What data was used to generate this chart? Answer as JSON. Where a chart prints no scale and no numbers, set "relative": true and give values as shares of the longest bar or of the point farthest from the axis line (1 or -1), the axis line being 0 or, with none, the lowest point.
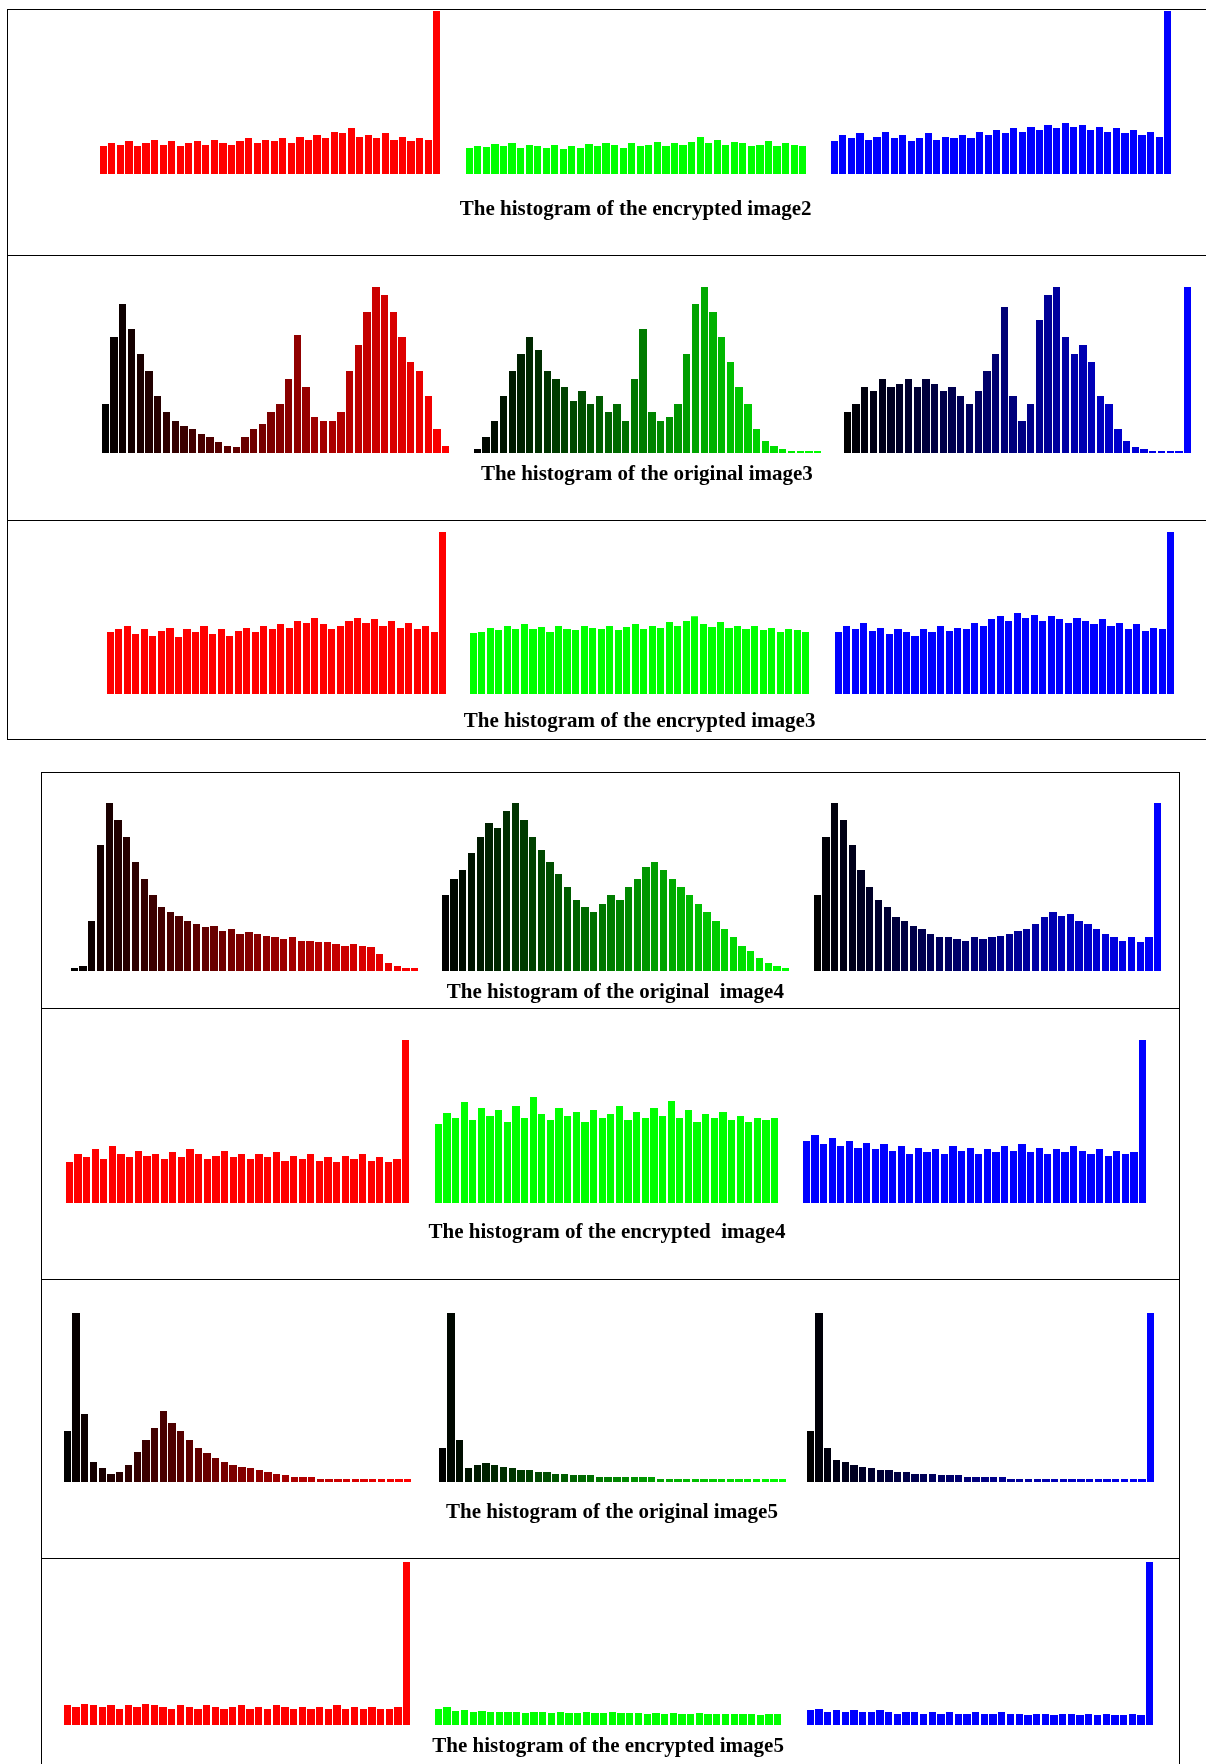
{
  "chart_data": [
    {
      "type": "bar",
      "relative": true,
      "categories": [
        null,
        null,
        null,
        null,
        null,
        null,
        null,
        null,
        null,
        null,
        null,
        null,
        null,
        null,
        null,
        null,
        null,
        null,
        null,
        null,
        null,
        null,
        null,
        null,
        null,
        null,
        null,
        null,
        null,
        null,
        null,
        null,
        null,
        null,
        null,
        null,
        null,
        null,
        null,
        null
      ],
      "color": "#ff0000",
      "values": [
        0.17,
        0.19,
        0.18,
        0.2,
        0.17,
        0.19,
        0.21,
        0.18,
        0.2,
        0.17,
        0.19,
        0.2,
        0.18,
        0.21,
        0.19,
        0.18,
        0.2,
        0.22,
        0.19,
        0.21,
        0.2,
        0.22,
        0.19,
        0.23,
        0.21,
        0.24,
        0.22,
        0.26,
        0.25,
        0.28,
        0.23,
        0.24,
        0.22,
        0.25,
        0.21,
        0.23,
        0.2,
        0.22,
        0.21,
        1
      ]
    },
    {
      "type": "bar",
      "relative": true,
      "title": "The histogram of the encrypted image2",
      "categories": [
        null,
        null,
        null,
        null,
        null,
        null,
        null,
        null,
        null,
        null,
        null,
        null,
        null,
        null,
        null,
        null,
        null,
        null,
        null,
        null,
        null,
        null,
        null,
        null,
        null,
        null,
        null,
        null,
        null,
        null,
        null,
        null,
        null,
        null,
        null,
        null,
        null,
        null,
        null,
        null
      ],
      "color": "#00ff00",
      "values": [
        0.7,
        0.75,
        0.72,
        0.8,
        0.74,
        0.82,
        0.7,
        0.78,
        0.75,
        0.7,
        0.78,
        0.68,
        0.74,
        0.7,
        0.8,
        0.74,
        0.82,
        0.78,
        0.7,
        0.84,
        0.74,
        0.78,
        0.86,
        0.74,
        0.82,
        0.78,
        0.86,
        1,
        0.84,
        0.9,
        0.78,
        0.86,
        0.82,
        0.74,
        0.78,
        0.88,
        0.74,
        0.82,
        0.78,
        0.74
      ]
    },
    {
      "type": "bar",
      "relative": true,
      "categories": [
        null,
        null,
        null,
        null,
        null,
        null,
        null,
        null,
        null,
        null,
        null,
        null,
        null,
        null,
        null,
        null,
        null,
        null,
        null,
        null,
        null,
        null,
        null,
        null,
        null,
        null,
        null,
        null,
        null,
        null,
        null,
        null,
        null,
        null,
        null,
        null,
        null,
        null,
        null,
        null
      ],
      "color": "#0000ff",
      "values": [
        0.2,
        0.24,
        0.22,
        0.25,
        0.21,
        0.23,
        0.26,
        0.22,
        0.24,
        0.2,
        0.22,
        0.25,
        0.21,
        0.23,
        0.22,
        0.24,
        0.22,
        0.26,
        0.24,
        0.27,
        0.25,
        0.28,
        0.26,
        0.29,
        0.27,
        0.3,
        0.28,
        0.31,
        0.29,
        0.3,
        0.27,
        0.29,
        0.26,
        0.28,
        0.25,
        0.27,
        0.24,
        0.26,
        0.23,
        1
      ]
    },
    {
      "type": "bar",
      "relative": true,
      "categories": [
        null,
        null,
        null,
        null,
        null,
        null,
        null,
        null,
        null,
        null,
        null,
        null,
        null,
        null,
        null,
        null,
        null,
        null,
        null,
        null,
        null,
        null,
        null,
        null,
        null,
        null,
        null,
        null,
        null,
        null,
        null,
        null,
        null,
        null,
        null,
        null,
        null,
        null,
        null,
        null
      ],
      "colors": [
        "#000000",
        "#070000",
        "#0d0000",
        "#140000",
        "#1a0000",
        "#210000",
        "#270000",
        "#2e0000",
        "#340000",
        "#3b0000",
        "#410000",
        "#480000",
        "#4e0000",
        "#550000",
        "#5c0000",
        "#620000",
        "#690000",
        "#6f0000",
        "#760000",
        "#7c0000",
        "#830000",
        "#890000",
        "#900000",
        "#960000",
        "#9d0000",
        "#a30000",
        "#aa0000",
        "#b10000",
        "#b70000",
        "#be0000",
        "#c40000",
        "#cb0000",
        "#d10000",
        "#d80000",
        "#de0000",
        "#e50000",
        "#eb0000",
        "#f20000",
        "#f80000",
        "#ff0000"
      ],
      "values": [
        0.3,
        0.7,
        0.9,
        0.75,
        0.6,
        0.5,
        0.35,
        0.25,
        0.2,
        0.17,
        0.15,
        0.12,
        0.1,
        0.07,
        0.05,
        0.04,
        0.1,
        0.15,
        0.18,
        0.25,
        0.3,
        0.45,
        0.71,
        0.4,
        0.22,
        0.2,
        0.2,
        0.25,
        0.5,
        0.65,
        0.85,
        1,
        0.95,
        0.85,
        0.7,
        0.55,
        0.5,
        0.35,
        0.15,
        0.05
      ]
    },
    {
      "type": "bar",
      "relative": true,
      "title": "The histogram of the original image3",
      "categories": [
        null,
        null,
        null,
        null,
        null,
        null,
        null,
        null,
        null,
        null,
        null,
        null,
        null,
        null,
        null,
        null,
        null,
        null,
        null,
        null,
        null,
        null,
        null,
        null,
        null,
        null,
        null,
        null,
        null,
        null,
        null,
        null,
        null,
        null,
        null,
        null,
        null,
        null,
        null,
        null
      ],
      "colors": [
        "#000000",
        "#000700",
        "#000d00",
        "#001400",
        "#001a00",
        "#002100",
        "#002700",
        "#002e00",
        "#003400",
        "#003b00",
        "#004100",
        "#004800",
        "#004e00",
        "#005500",
        "#005c00",
        "#006200",
        "#006900",
        "#006f00",
        "#007600",
        "#007c00",
        "#008300",
        "#008900",
        "#009000",
        "#009600",
        "#009d00",
        "#00a300",
        "#00aa00",
        "#00b100",
        "#00b700",
        "#00be00",
        "#00c400",
        "#00cb00",
        "#00d100",
        "#00d800",
        "#00de00",
        "#00e500",
        "#00eb00",
        "#00f200",
        "#00f800",
        "#00ff00"
      ],
      "values": [
        0.03,
        0.1,
        0.2,
        0.35,
        0.5,
        0.6,
        0.7,
        0.62,
        0.5,
        0.45,
        0.4,
        0.32,
        0.38,
        0.3,
        0.35,
        0.25,
        0.3,
        0.2,
        0.45,
        0.75,
        0.25,
        0.2,
        0.22,
        0.3,
        0.6,
        0.9,
        1,
        0.85,
        0.7,
        0.55,
        0.4,
        0.3,
        0.15,
        0.08,
        0.05,
        0.03,
        0.02,
        0.02,
        0.02,
        0.02
      ]
    },
    {
      "type": "bar",
      "relative": true,
      "categories": [
        null,
        null,
        null,
        null,
        null,
        null,
        null,
        null,
        null,
        null,
        null,
        null,
        null,
        null,
        null,
        null,
        null,
        null,
        null,
        null,
        null,
        null,
        null,
        null,
        null,
        null,
        null,
        null,
        null,
        null,
        null,
        null,
        null,
        null,
        null,
        null,
        null,
        null,
        null,
        null
      ],
      "colors": [
        "#000000",
        "#000007",
        "#00000d",
        "#000014",
        "#00001a",
        "#000021",
        "#000027",
        "#00002e",
        "#000034",
        "#00003b",
        "#000041",
        "#000048",
        "#00004e",
        "#000055",
        "#00005c",
        "#000062",
        "#000069",
        "#00006f",
        "#000076",
        "#00007c",
        "#000083",
        "#000089",
        "#000090",
        "#000096",
        "#00009d",
        "#0000a3",
        "#0000aa",
        "#0000b1",
        "#0000b7",
        "#0000be",
        "#0000c4",
        "#0000cb",
        "#0000d1",
        "#0000d8",
        "#0000de",
        "#0000e5",
        "#0000eb",
        "#0000f2",
        "#0000f8",
        "#0000ff"
      ],
      "values": [
        0.25,
        0.3,
        0.4,
        0.38,
        0.45,
        0.4,
        0.42,
        0.45,
        0.4,
        0.45,
        0.42,
        0.38,
        0.4,
        0.35,
        0.3,
        0.38,
        0.5,
        0.6,
        0.88,
        0.35,
        0.2,
        0.3,
        0.8,
        0.95,
        1,
        0.7,
        0.6,
        0.65,
        0.55,
        0.35,
        0.3,
        0.15,
        0.08,
        0.04,
        0.03,
        0.02,
        0.02,
        0.02,
        0.02,
        1
      ]
    },
    {
      "type": "bar",
      "relative": true,
      "categories": [
        null,
        null,
        null,
        null,
        null,
        null,
        null,
        null,
        null,
        null,
        null,
        null,
        null,
        null,
        null,
        null,
        null,
        null,
        null,
        null,
        null,
        null,
        null,
        null,
        null,
        null,
        null,
        null,
        null,
        null,
        null,
        null,
        null,
        null,
        null,
        null,
        null,
        null,
        null,
        null
      ],
      "color": "#ff0000",
      "values": [
        0.38,
        0.4,
        0.42,
        0.37,
        0.4,
        0.36,
        0.39,
        0.41,
        0.35,
        0.4,
        0.38,
        0.42,
        0.37,
        0.4,
        0.36,
        0.39,
        0.41,
        0.38,
        0.42,
        0.4,
        0.43,
        0.41,
        0.45,
        0.44,
        0.47,
        0.43,
        0.4,
        0.42,
        0.45,
        0.47,
        0.44,
        0.46,
        0.42,
        0.45,
        0.41,
        0.44,
        0.4,
        0.42,
        0.38,
        1
      ]
    },
    {
      "type": "bar",
      "relative": true,
      "title": "The histogram of the encrypted image3",
      "categories": [
        null,
        null,
        null,
        null,
        null,
        null,
        null,
        null,
        null,
        null,
        null,
        null,
        null,
        null,
        null,
        null,
        null,
        null,
        null,
        null,
        null,
        null,
        null,
        null,
        null,
        null,
        null,
        null,
        null,
        null,
        null,
        null,
        null,
        null,
        null,
        null,
        null,
        null,
        null,
        null
      ],
      "color": "#00ff00",
      "values": [
        0.78,
        0.8,
        0.85,
        0.82,
        0.88,
        0.84,
        0.9,
        0.83,
        0.86,
        0.8,
        0.87,
        0.84,
        0.82,
        0.88,
        0.85,
        0.83,
        0.87,
        0.82,
        0.86,
        0.9,
        0.84,
        0.88,
        0.85,
        0.92,
        0.87,
        0.94,
        1,
        0.9,
        0.86,
        0.92,
        0.85,
        0.88,
        0.83,
        0.87,
        0.82,
        0.85,
        0.8,
        0.84,
        0.82,
        0.8
      ]
    },
    {
      "type": "bar",
      "relative": true,
      "categories": [
        null,
        null,
        null,
        null,
        null,
        null,
        null,
        null,
        null,
        null,
        null,
        null,
        null,
        null,
        null,
        null,
        null,
        null,
        null,
        null,
        null,
        null,
        null,
        null,
        null,
        null,
        null,
        null,
        null,
        null,
        null,
        null,
        null,
        null,
        null,
        null,
        null,
        null,
        null,
        null
      ],
      "color": "#0000ff",
      "values": [
        0.38,
        0.42,
        0.4,
        0.44,
        0.39,
        0.41,
        0.37,
        0.4,
        0.38,
        0.36,
        0.4,
        0.38,
        0.42,
        0.39,
        0.41,
        0.4,
        0.44,
        0.42,
        0.46,
        0.48,
        0.45,
        0.5,
        0.47,
        0.49,
        0.45,
        0.48,
        0.46,
        0.44,
        0.47,
        0.45,
        0.43,
        0.46,
        0.42,
        0.44,
        0.4,
        0.43,
        0.39,
        0.41,
        0.4,
        1
      ]
    },
    {
      "type": "bar",
      "relative": true,
      "categories": [
        null,
        null,
        null,
        null,
        null,
        null,
        null,
        null,
        null,
        null,
        null,
        null,
        null,
        null,
        null,
        null,
        null,
        null,
        null,
        null,
        null,
        null,
        null,
        null,
        null,
        null,
        null,
        null,
        null,
        null,
        null,
        null,
        null,
        null,
        null,
        null,
        null,
        null,
        null,
        null
      ],
      "colors": [
        "#000000",
        "#070000",
        "#0d0000",
        "#140000",
        "#1a0000",
        "#210000",
        "#270000",
        "#2e0000",
        "#340000",
        "#3b0000",
        "#410000",
        "#480000",
        "#4e0000",
        "#550000",
        "#5c0000",
        "#620000",
        "#690000",
        "#6f0000",
        "#760000",
        "#7c0000",
        "#830000",
        "#890000",
        "#900000",
        "#960000",
        "#9d0000",
        "#a30000",
        "#aa0000",
        "#b10000",
        "#b70000",
        "#be0000",
        "#c40000",
        "#cb0000",
        "#d10000",
        "#d80000",
        "#de0000",
        "#e50000",
        "#eb0000",
        "#f20000",
        "#f80000",
        "#ff0000"
      ],
      "values": [
        0.02,
        0.03,
        0.3,
        0.75,
        1,
        0.9,
        0.8,
        0.65,
        0.55,
        0.45,
        0.38,
        0.35,
        0.33,
        0.3,
        0.28,
        0.26,
        0.27,
        0.24,
        0.25,
        0.22,
        0.23,
        0.22,
        0.21,
        0.2,
        0.19,
        0.2,
        0.18,
        0.18,
        0.17,
        0.17,
        0.16,
        0.15,
        0.16,
        0.15,
        0.14,
        0.1,
        0.05,
        0.03,
        0.02,
        0.02
      ]
    },
    {
      "type": "bar",
      "relative": true,
      "title": "The histogram of the original  image4",
      "categories": [
        null,
        null,
        null,
        null,
        null,
        null,
        null,
        null,
        null,
        null,
        null,
        null,
        null,
        null,
        null,
        null,
        null,
        null,
        null,
        null,
        null,
        null,
        null,
        null,
        null,
        null,
        null,
        null,
        null,
        null,
        null,
        null,
        null,
        null,
        null,
        null,
        null,
        null,
        null,
        null
      ],
      "colors": [
        "#000000",
        "#000700",
        "#000d00",
        "#001400",
        "#001a00",
        "#002100",
        "#002700",
        "#002e00",
        "#003400",
        "#003b00",
        "#004100",
        "#004800",
        "#004e00",
        "#005500",
        "#005c00",
        "#006200",
        "#006900",
        "#006f00",
        "#007600",
        "#007c00",
        "#008300",
        "#008900",
        "#009000",
        "#009600",
        "#009d00",
        "#00a300",
        "#00aa00",
        "#00b100",
        "#00b700",
        "#00be00",
        "#00c400",
        "#00cb00",
        "#00d100",
        "#00d800",
        "#00de00",
        "#00e500",
        "#00eb00",
        "#00f200",
        "#00f800",
        "#00ff00"
      ],
      "values": [
        0.45,
        0.55,
        0.6,
        0.7,
        0.8,
        0.88,
        0.85,
        0.95,
        1,
        0.9,
        0.8,
        0.72,
        0.65,
        0.58,
        0.5,
        0.42,
        0.38,
        0.35,
        0.4,
        0.45,
        0.42,
        0.5,
        0.55,
        0.62,
        0.65,
        0.6,
        0.55,
        0.5,
        0.45,
        0.4,
        0.35,
        0.3,
        0.25,
        0.2,
        0.15,
        0.12,
        0.08,
        0.05,
        0.03,
        0.02
      ]
    },
    {
      "type": "bar",
      "relative": true,
      "categories": [
        null,
        null,
        null,
        null,
        null,
        null,
        null,
        null,
        null,
        null,
        null,
        null,
        null,
        null,
        null,
        null,
        null,
        null,
        null,
        null,
        null,
        null,
        null,
        null,
        null,
        null,
        null,
        null,
        null,
        null,
        null,
        null,
        null,
        null,
        null,
        null,
        null,
        null,
        null,
        null
      ],
      "colors": [
        "#000000",
        "#000007",
        "#00000d",
        "#000014",
        "#00001a",
        "#000021",
        "#000027",
        "#00002e",
        "#000034",
        "#00003b",
        "#000041",
        "#000048",
        "#00004e",
        "#000055",
        "#00005c",
        "#000062",
        "#000069",
        "#00006f",
        "#000076",
        "#00007c",
        "#000083",
        "#000089",
        "#000090",
        "#000096",
        "#00009d",
        "#0000a3",
        "#0000aa",
        "#0000b1",
        "#0000b7",
        "#0000be",
        "#0000c4",
        "#0000cb",
        "#0000d1",
        "#0000d8",
        "#0000de",
        "#0000e5",
        "#0000eb",
        "#0000f2",
        "#0000f8",
        "#0000ff"
      ],
      "values": [
        0.45,
        0.8,
        1,
        0.9,
        0.75,
        0.6,
        0.5,
        0.42,
        0.38,
        0.32,
        0.3,
        0.27,
        0.25,
        0.22,
        0.2,
        0.2,
        0.19,
        0.18,
        0.2,
        0.19,
        0.2,
        0.21,
        0.22,
        0.24,
        0.25,
        0.28,
        0.32,
        0.35,
        0.33,
        0.34,
        0.3,
        0.28,
        0.25,
        0.22,
        0.2,
        0.18,
        0.2,
        0.17,
        0.2,
        1
      ]
    },
    {
      "type": "bar",
      "relative": true,
      "categories": [
        null,
        null,
        null,
        null,
        null,
        null,
        null,
        null,
        null,
        null,
        null,
        null,
        null,
        null,
        null,
        null,
        null,
        null,
        null,
        null,
        null,
        null,
        null,
        null,
        null,
        null,
        null,
        null,
        null,
        null,
        null,
        null,
        null,
        null,
        null,
        null,
        null,
        null,
        null,
        null
      ],
      "color": "#ff0000",
      "values": [
        0.25,
        0.3,
        0.28,
        0.33,
        0.27,
        0.35,
        0.3,
        0.28,
        0.32,
        0.29,
        0.3,
        0.27,
        0.31,
        0.28,
        0.33,
        0.3,
        0.27,
        0.29,
        0.32,
        0.28,
        0.3,
        0.27,
        0.3,
        0.28,
        0.31,
        0.26,
        0.29,
        0.27,
        0.3,
        0.26,
        0.28,
        0.25,
        0.29,
        0.27,
        0.3,
        0.26,
        0.28,
        0.25,
        0.27,
        1
      ]
    },
    {
      "type": "bar",
      "relative": true,
      "title": "The histogram of the encrypted  image4",
      "categories": [
        null,
        null,
        null,
        null,
        null,
        null,
        null,
        null,
        null,
        null,
        null,
        null,
        null,
        null,
        null,
        null,
        null,
        null,
        null,
        null,
        null,
        null,
        null,
        null,
        null,
        null,
        null,
        null,
        null,
        null,
        null,
        null,
        null,
        null,
        null,
        null,
        null,
        null,
        null,
        null
      ],
      "color": "#00ff00",
      "values": [
        0.75,
        0.85,
        0.8,
        0.95,
        0.78,
        0.9,
        0.82,
        0.88,
        0.76,
        0.92,
        0.8,
        1,
        0.84,
        0.78,
        0.9,
        0.82,
        0.86,
        0.76,
        0.88,
        0.8,
        0.84,
        0.92,
        0.78,
        0.86,
        0.8,
        0.9,
        0.82,
        0.96,
        0.8,
        0.88,
        0.76,
        0.84,
        0.8,
        0.86,
        0.78,
        0.82,
        0.76,
        0.8,
        0.78,
        0.8
      ]
    },
    {
      "type": "bar",
      "relative": true,
      "categories": [
        null,
        null,
        null,
        null,
        null,
        null,
        null,
        null,
        null,
        null,
        null,
        null,
        null,
        null,
        null,
        null,
        null,
        null,
        null,
        null,
        null,
        null,
        null,
        null,
        null,
        null,
        null,
        null,
        null,
        null,
        null,
        null,
        null,
        null,
        null,
        null,
        null,
        null,
        null,
        null
      ],
      "color": "#0000ff",
      "values": [
        0.38,
        0.42,
        0.36,
        0.4,
        0.35,
        0.38,
        0.34,
        0.37,
        0.33,
        0.36,
        0.32,
        0.35,
        0.3,
        0.34,
        0.31,
        0.33,
        0.3,
        0.35,
        0.32,
        0.34,
        0.3,
        0.33,
        0.31,
        0.35,
        0.32,
        0.36,
        0.31,
        0.34,
        0.3,
        0.33,
        0.31,
        0.35,
        0.32,
        0.3,
        0.33,
        0.29,
        0.32,
        0.3,
        0.31,
        1
      ]
    },
    {
      "type": "bar",
      "relative": true,
      "categories": [
        null,
        null,
        null,
        null,
        null,
        null,
        null,
        null,
        null,
        null,
        null,
        null,
        null,
        null,
        null,
        null,
        null,
        null,
        null,
        null,
        null,
        null,
        null,
        null,
        null,
        null,
        null,
        null,
        null,
        null,
        null,
        null,
        null,
        null,
        null,
        null,
        null,
        null,
        null,
        null
      ],
      "colors": [
        "#000000",
        "#070000",
        "#0d0000",
        "#140000",
        "#1a0000",
        "#210000",
        "#270000",
        "#2e0000",
        "#340000",
        "#3b0000",
        "#410000",
        "#480000",
        "#4e0000",
        "#550000",
        "#5c0000",
        "#620000",
        "#690000",
        "#6f0000",
        "#760000",
        "#7c0000",
        "#830000",
        "#890000",
        "#900000",
        "#960000",
        "#9d0000",
        "#a30000",
        "#aa0000",
        "#b10000",
        "#b70000",
        "#be0000",
        "#c40000",
        "#cb0000",
        "#d10000",
        "#d80000",
        "#de0000",
        "#e50000",
        "#eb0000",
        "#f20000",
        "#f80000",
        "#ff0000"
      ],
      "values": [
        0.3,
        1,
        0.4,
        0.12,
        0.08,
        0.05,
        0.06,
        0.1,
        0.18,
        0.25,
        0.32,
        0.42,
        0.35,
        0.3,
        0.25,
        0.2,
        0.17,
        0.14,
        0.12,
        0.1,
        0.09,
        0.08,
        0.07,
        0.06,
        0.05,
        0.04,
        0.03,
        0.03,
        0.03,
        0.02,
        0.02,
        0.02,
        0.02,
        0.02,
        0.02,
        0.02,
        0.02,
        0.02,
        0.02,
        0.02
      ]
    },
    {
      "type": "bar",
      "relative": true,
      "title": "The histogram of the original image5",
      "categories": [
        null,
        null,
        null,
        null,
        null,
        null,
        null,
        null,
        null,
        null,
        null,
        null,
        null,
        null,
        null,
        null,
        null,
        null,
        null,
        null,
        null,
        null,
        null,
        null,
        null,
        null,
        null,
        null,
        null,
        null,
        null,
        null,
        null,
        null,
        null,
        null,
        null,
        null,
        null,
        null
      ],
      "colors": [
        "#000000",
        "#000700",
        "#000d00",
        "#001400",
        "#001a00",
        "#002100",
        "#002700",
        "#002e00",
        "#003400",
        "#003b00",
        "#004100",
        "#004800",
        "#004e00",
        "#005500",
        "#005c00",
        "#006200",
        "#006900",
        "#006f00",
        "#007600",
        "#007c00",
        "#008300",
        "#008900",
        "#009000",
        "#009600",
        "#009d00",
        "#00a300",
        "#00aa00",
        "#00b100",
        "#00b700",
        "#00be00",
        "#00c400",
        "#00cb00",
        "#00d100",
        "#00d800",
        "#00de00",
        "#00e500",
        "#00eb00",
        "#00f200",
        "#00f800",
        "#00ff00"
      ],
      "values": [
        0.2,
        1,
        0.25,
        0.08,
        0.1,
        0.11,
        0.1,
        0.09,
        0.08,
        0.07,
        0.07,
        0.06,
        0.06,
        0.05,
        0.05,
        0.04,
        0.04,
        0.04,
        0.03,
        0.03,
        0.03,
        0.03,
        0.03,
        0.03,
        0.03,
        0.02,
        0.02,
        0.02,
        0.02,
        0.02,
        0.02,
        0.02,
        0.02,
        0.02,
        0.02,
        0.02,
        0.02,
        0.02,
        0.02,
        0.02
      ]
    },
    {
      "type": "bar",
      "relative": true,
      "categories": [
        null,
        null,
        null,
        null,
        null,
        null,
        null,
        null,
        null,
        null,
        null,
        null,
        null,
        null,
        null,
        null,
        null,
        null,
        null,
        null,
        null,
        null,
        null,
        null,
        null,
        null,
        null,
        null,
        null,
        null,
        null,
        null,
        null,
        null,
        null,
        null,
        null,
        null,
        null,
        null
      ],
      "colors": [
        "#000000",
        "#000007",
        "#00000d",
        "#000014",
        "#00001a",
        "#000021",
        "#000027",
        "#00002e",
        "#000034",
        "#00003b",
        "#000041",
        "#000048",
        "#00004e",
        "#000055",
        "#00005c",
        "#000062",
        "#000069",
        "#00006f",
        "#000076",
        "#00007c",
        "#000083",
        "#000089",
        "#000090",
        "#000096",
        "#00009d",
        "#0000a3",
        "#0000aa",
        "#0000b1",
        "#0000b7",
        "#0000be",
        "#0000c4",
        "#0000cb",
        "#0000d1",
        "#0000d8",
        "#0000de",
        "#0000e5",
        "#0000eb",
        "#0000f2",
        "#0000f8",
        "#0000ff"
      ],
      "values": [
        0.3,
        1,
        0.2,
        0.13,
        0.12,
        0.1,
        0.09,
        0.08,
        0.07,
        0.07,
        0.06,
        0.06,
        0.05,
        0.05,
        0.05,
        0.04,
        0.04,
        0.04,
        0.03,
        0.03,
        0.03,
        0.03,
        0.03,
        0.02,
        0.02,
        0.02,
        0.02,
        0.02,
        0.02,
        0.02,
        0.02,
        0.02,
        0.02,
        0.02,
        0.02,
        0.02,
        0.02,
        0.02,
        0.02,
        1
      ]
    },
    {
      "type": "bar",
      "relative": true,
      "categories": [
        null,
        null,
        null,
        null,
        null,
        null,
        null,
        null,
        null,
        null,
        null,
        null,
        null,
        null,
        null,
        null,
        null,
        null,
        null,
        null,
        null,
        null,
        null,
        null,
        null,
        null,
        null,
        null,
        null,
        null,
        null,
        null,
        null,
        null,
        null,
        null,
        null,
        null,
        null,
        null
      ],
      "color": "#ff0000",
      "values": [
        0.12,
        0.11,
        0.13,
        0.12,
        0.11,
        0.12,
        0.1,
        0.12,
        0.11,
        0.13,
        0.12,
        0.11,
        0.1,
        0.12,
        0.11,
        0.1,
        0.12,
        0.11,
        0.1,
        0.11,
        0.12,
        0.1,
        0.11,
        0.1,
        0.12,
        0.11,
        0.1,
        0.11,
        0.1,
        0.11,
        0.1,
        0.12,
        0.1,
        0.11,
        0.1,
        0.11,
        0.1,
        0.1,
        0.11,
        1
      ]
    },
    {
      "type": "bar",
      "relative": true,
      "title": "The histogram of the encrypted image5",
      "categories": [
        null,
        null,
        null,
        null,
        null,
        null,
        null,
        null,
        null,
        null,
        null,
        null,
        null,
        null,
        null,
        null,
        null,
        null,
        null,
        null,
        null,
        null,
        null,
        null,
        null,
        null,
        null,
        null,
        null,
        null,
        null,
        null,
        null,
        null,
        null,
        null,
        null,
        null,
        null,
        null
      ],
      "color": "#00ff00",
      "values": [
        0.9,
        1,
        0.8,
        0.85,
        0.75,
        0.8,
        0.7,
        0.75,
        0.72,
        0.7,
        0.68,
        0.7,
        0.72,
        0.65,
        0.7,
        0.68,
        0.66,
        0.7,
        0.65,
        0.68,
        0.7,
        0.65,
        0.66,
        0.68,
        0.64,
        0.66,
        0.62,
        0.65,
        0.64,
        0.62,
        0.66,
        0.6,
        0.64,
        0.62,
        0.6,
        0.62,
        0.6,
        0.58,
        0.6,
        0.6
      ]
    },
    {
      "type": "bar",
      "relative": true,
      "categories": [
        null,
        null,
        null,
        null,
        null,
        null,
        null,
        null,
        null,
        null,
        null,
        null,
        null,
        null,
        null,
        null,
        null,
        null,
        null,
        null,
        null,
        null,
        null,
        null,
        null,
        null,
        null,
        null,
        null,
        null,
        null,
        null,
        null,
        null,
        null,
        null,
        null,
        null,
        null,
        null
      ],
      "color": "#0000ff",
      "values": [
        0.09,
        0.1,
        0.08,
        0.09,
        0.08,
        0.09,
        0.08,
        0.08,
        0.09,
        0.08,
        0.07,
        0.08,
        0.08,
        0.07,
        0.08,
        0.07,
        0.08,
        0.07,
        0.07,
        0.08,
        0.07,
        0.07,
        0.08,
        0.07,
        0.07,
        0.06,
        0.07,
        0.07,
        0.06,
        0.07,
        0.07,
        0.06,
        0.07,
        0.06,
        0.07,
        0.06,
        0.06,
        0.07,
        0.06,
        1
      ]
    }
  ]
}
